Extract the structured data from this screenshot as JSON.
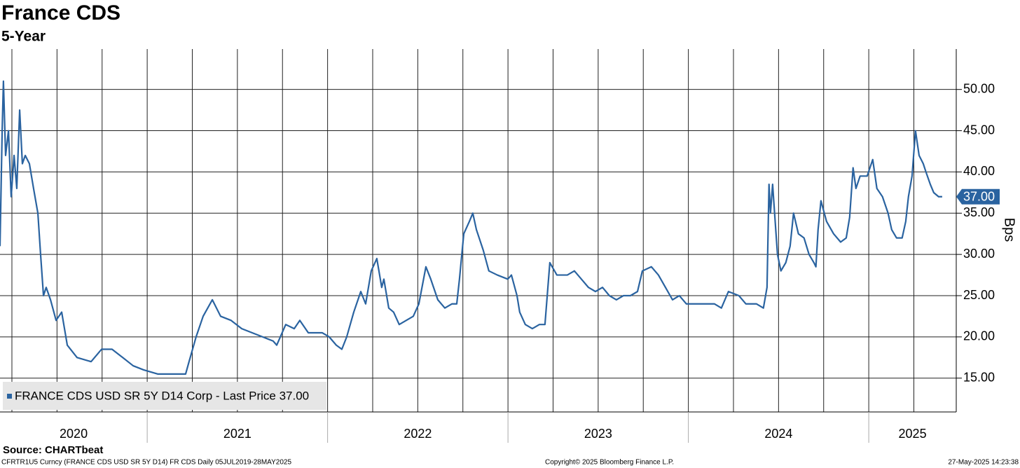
{
  "chart_data": {
    "type": "line",
    "title": "France CDS",
    "subtitle": "5-Year",
    "y_label": "Bps",
    "source": "Source: CHARTbeat",
    "footer_left": "CFRTR1U5 Curncy (FRANCE CDS USD SR 5Y D14) FR CDS  Daily 05JUL2019-28MAY2025",
    "footer_center": "Copyright© 2025 Bloomberg Finance L.P.",
    "footer_right": "27-May-2025 14:23:38",
    "grid": true,
    "legend": "bottom-left",
    "xlim": [
      2020.184,
      2025.485
    ],
    "xticks": [
      2020.25,
      2020.5,
      2020.75,
      2021,
      2021.25,
      2021.5,
      2021.75,
      2022,
      2022.25,
      2022.5,
      2022.75,
      2023,
      2023.25,
      2023.5,
      2023.75,
      2024,
      2024.25,
      2024.5,
      2024.75,
      2025,
      2025.25
    ],
    "year_bounds": [
      2021,
      2022,
      2023,
      2024,
      2025
    ],
    "year_labels": [
      "2020",
      "2021",
      "2022",
      "2023",
      "2024",
      "2025"
    ],
    "ylim": [
      10.9,
      54.9
    ],
    "yticks": [
      {
        "value": 15,
        "label": "15.00"
      },
      {
        "value": 20,
        "label": "20.00"
      },
      {
        "value": 25,
        "label": "25.00"
      },
      {
        "value": 30,
        "label": "30.00"
      },
      {
        "value": 35,
        "label": "35.00"
      },
      {
        "value": 40,
        "label": "40.00"
      },
      {
        "value": 45,
        "label": "45.00"
      },
      {
        "value": 50,
        "label": "50.00"
      }
    ],
    "last_price": {
      "value": 37,
      "label": "37.00"
    },
    "x": [
      2020.184,
      2020.196,
      2020.203,
      2020.215,
      2020.231,
      2020.246,
      2020.262,
      2020.277,
      2020.293,
      2020.308,
      2020.324,
      2020.347,
      2020.37,
      2020.394,
      2020.409,
      2020.425,
      2020.44,
      2020.464,
      2020.495,
      2020.526,
      2020.557,
      2020.611,
      2020.689,
      2020.747,
      2020.805,
      2020.864,
      2020.922,
      2020.98,
      2021.058,
      2021.155,
      2021.213,
      2021.232,
      2021.271,
      2021.31,
      2021.361,
      2021.407,
      2021.465,
      2021.524,
      2021.582,
      2021.64,
      2021.698,
      2021.718,
      2021.768,
      2021.815,
      2021.846,
      2021.893,
      2021.97,
      2022.009,
      2022.048,
      2022.079,
      2022.106,
      2022.145,
      2022.184,
      2022.211,
      2022.242,
      2022.273,
      2022.3,
      2022.312,
      2022.339,
      2022.366,
      2022.397,
      2022.436,
      2022.475,
      2022.506,
      2022.545,
      2022.572,
      2022.611,
      2022.65,
      2022.689,
      2022.716,
      2022.731,
      2022.755,
      2022.786,
      2022.805,
      2022.825,
      2022.863,
      2022.894,
      2022.941,
      2022.999,
      2023.019,
      2023.05,
      2023.065,
      2023.096,
      2023.135,
      2023.174,
      2023.205,
      2023.232,
      2023.271,
      2023.329,
      2023.368,
      2023.407,
      2023.446,
      2023.485,
      2023.524,
      2023.562,
      2023.601,
      2023.64,
      2023.679,
      2023.718,
      2023.745,
      2023.795,
      2023.834,
      2023.873,
      2023.912,
      2023.95,
      2023.989,
      2024.067,
      2024.145,
      2024.183,
      2024.222,
      2024.28,
      2024.319,
      2024.378,
      2024.416,
      2024.436,
      2024.447,
      2024.455,
      2024.467,
      2024.478,
      2024.494,
      2024.513,
      2024.54,
      2024.564,
      2024.583,
      2024.61,
      2024.641,
      2024.669,
      2024.696,
      2024.707,
      2024.719,
      2024.735,
      2024.766,
      2024.805,
      2024.844,
      2024.875,
      2024.894,
      2024.913,
      2024.929,
      2024.952,
      2024.991,
      2025.022,
      2025.045,
      2025.076,
      2025.107,
      2025.127,
      2025.154,
      2025.185,
      2025.205,
      2025.22,
      2025.24,
      2025.259,
      2025.279,
      2025.302,
      2025.317,
      2025.341,
      2025.36,
      2025.387,
      2025.407
    ],
    "series": [
      {
        "name": "FRANCE CDS USD SR 5Y D14 Corp - Last Price 37.00",
        "color": "#2a63a0",
        "values": [
          31,
          45,
          51,
          42,
          45,
          37,
          42,
          38,
          47.5,
          41,
          42,
          41,
          38,
          35,
          30,
          25,
          26,
          24.5,
          22,
          23,
          19,
          17.5,
          17,
          18.5,
          18.5,
          17.5,
          16.5,
          16,
          15.5,
          15.5,
          15.5,
          17,
          20,
          22.5,
          24.5,
          22.5,
          22,
          21,
          20.5,
          20,
          19.5,
          19,
          21.5,
          21,
          22,
          20.5,
          20.5,
          20,
          19,
          18.5,
          20,
          23,
          25.5,
          24,
          28,
          29.5,
          26,
          27,
          23.5,
          23,
          21.5,
          22,
          22.5,
          24,
          28.5,
          27,
          24.5,
          23.5,
          24,
          24,
          27,
          32.5,
          34,
          35,
          33,
          30.5,
          28,
          27.5,
          27,
          27.5,
          25,
          23,
          21.5,
          21,
          21.5,
          21.5,
          29,
          27.5,
          27.5,
          28,
          27,
          26,
          25.5,
          26,
          25,
          24.5,
          25,
          25,
          25.5,
          28,
          28.5,
          27.5,
          26,
          24.5,
          25,
          24,
          24,
          24,
          23.5,
          25.5,
          25,
          24,
          24,
          23.5,
          26,
          38.5,
          35,
          38.5,
          35,
          30,
          28,
          29,
          31,
          35,
          32.5,
          32,
          30,
          29,
          28.5,
          33,
          36.5,
          34,
          32.5,
          31.5,
          32,
          34.5,
          40.5,
          38,
          39.5,
          39.5,
          41.5,
          38,
          37,
          35,
          33,
          32,
          32,
          34,
          37,
          39.5,
          45,
          42,
          41,
          40,
          38.5,
          37.5,
          37,
          37
        ]
      }
    ]
  }
}
